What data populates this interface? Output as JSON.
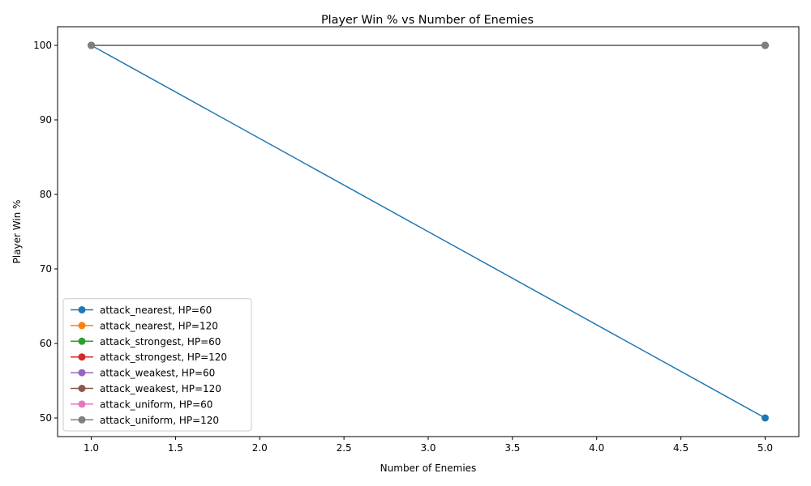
{
  "chart_data": {
    "type": "line",
    "title": "Player Win % vs Number of Enemies",
    "xlabel": "Number of Enemies",
    "ylabel": "Player Win %",
    "xlim": [
      0.8,
      5.2
    ],
    "ylim": [
      47.5,
      102.5
    ],
    "xticks": [
      1.0,
      1.5,
      2.0,
      2.5,
      3.0,
      3.5,
      4.0,
      4.5,
      5.0
    ],
    "yticks": [
      50,
      60,
      70,
      80,
      90,
      100
    ],
    "grid": false,
    "legend_position": "lower-left",
    "x": [
      1,
      5
    ],
    "series": [
      {
        "name": "attack_nearest, HP=60",
        "color": "#1f77b4",
        "values": [
          100,
          50
        ]
      },
      {
        "name": "attack_nearest, HP=120",
        "color": "#ff7f0e",
        "values": [
          100,
          100
        ]
      },
      {
        "name": "attack_strongest, HP=60",
        "color": "#2ca02c",
        "values": [
          100,
          100
        ]
      },
      {
        "name": "attack_strongest, HP=120",
        "color": "#d62728",
        "values": [
          100,
          100
        ]
      },
      {
        "name": "attack_weakest, HP=60",
        "color": "#9467bd",
        "values": [
          100,
          100
        ]
      },
      {
        "name": "attack_weakest, HP=120",
        "color": "#8c564b",
        "values": [
          100,
          100
        ]
      },
      {
        "name": "attack_uniform, HP=60",
        "color": "#e377c2",
        "values": [
          100,
          100
        ]
      },
      {
        "name": "attack_uniform, HP=120",
        "color": "#7f7f7f",
        "values": [
          100,
          100
        ]
      }
    ]
  }
}
